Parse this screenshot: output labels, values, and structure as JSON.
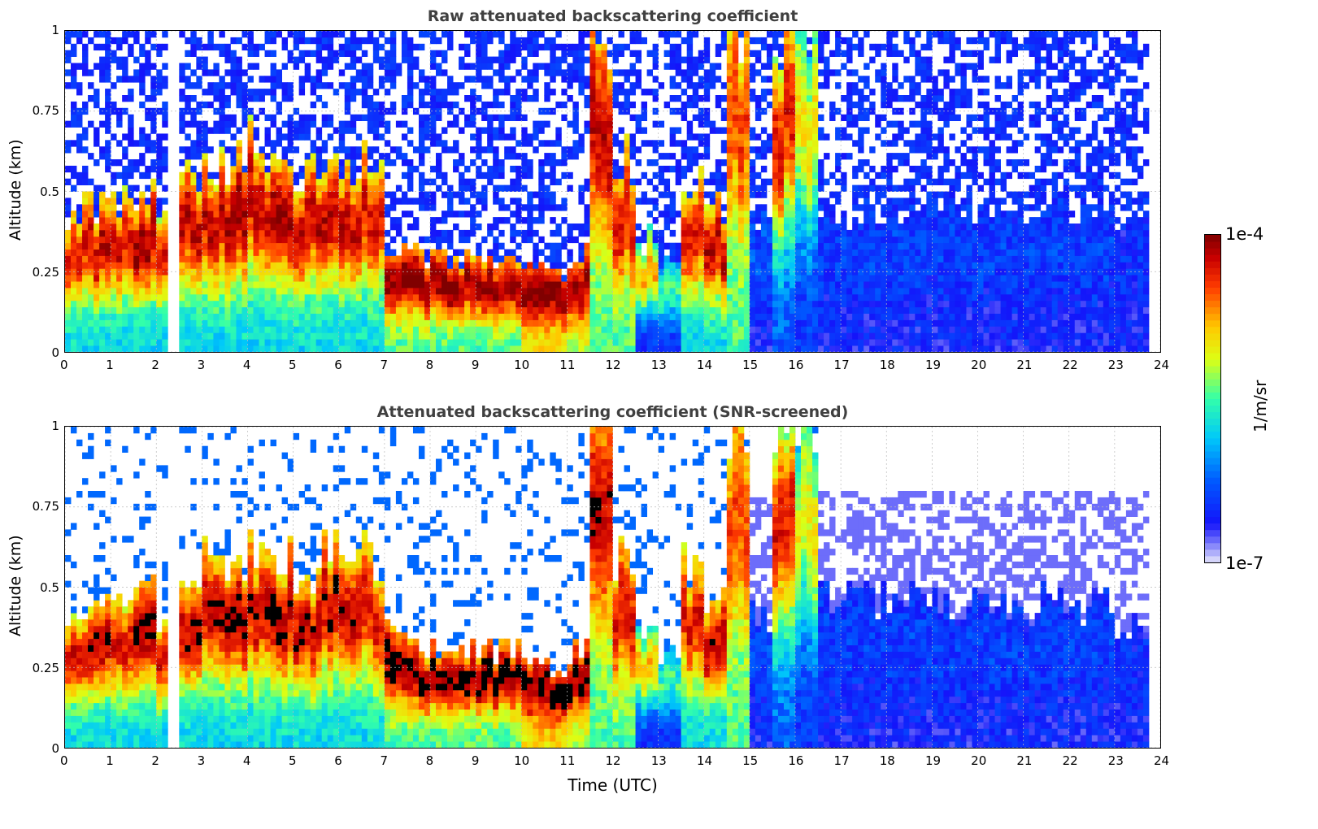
{
  "chart_data": [
    {
      "type": "heatmap",
      "title": "Raw attenuated backscattering coefficient",
      "xlabel": "",
      "ylabel": "Altitude (km)",
      "xlim": [
        0,
        24
      ],
      "ylim": [
        0,
        1
      ],
      "xticks": [
        0,
        1,
        2,
        3,
        4,
        5,
        6,
        7,
        8,
        9,
        10,
        11,
        12,
        13,
        14,
        15,
        16,
        17,
        18,
        19,
        20,
        21,
        22,
        23,
        24
      ],
      "yticks": [
        "0",
        "0.25",
        "0.5",
        "0.75",
        "1"
      ],
      "grid": true,
      "screened": false
    },
    {
      "type": "heatmap",
      "title": "Attenuated backscattering coefficient (SNR-screened)",
      "xlabel": "Time (UTC)",
      "ylabel": "Altitude (km)",
      "xlim": [
        0,
        24
      ],
      "ylim": [
        0,
        1
      ],
      "xticks": [
        0,
        1,
        2,
        3,
        4,
        5,
        6,
        7,
        8,
        9,
        10,
        11,
        12,
        13,
        14,
        15,
        16,
        17,
        18,
        19,
        20,
        21,
        22,
        23,
        24
      ],
      "yticks": [
        "0",
        "0.25",
        "0.5",
        "0.75",
        "1"
      ],
      "grid": true,
      "screened": true
    }
  ],
  "profiles": {
    "bin_hours": 0.5,
    "fields": [
      "layer_top_km",
      "peak_log10",
      "base_log10"
    ],
    "bins": [
      [
        0.45,
        -4.3,
        -5.8
      ],
      [
        0.45,
        -4.2,
        -5.8
      ],
      [
        0.45,
        -4.3,
        -5.8
      ],
      [
        0.5,
        -4.1,
        -5.8
      ],
      [
        0.4,
        -4.3,
        -5.9
      ],
      [
        0.55,
        -4.2,
        -5.8
      ],
      [
        0.6,
        -4.2,
        -5.8
      ],
      [
        0.6,
        -4.1,
        -5.8
      ],
      [
        0.65,
        -4.2,
        -5.8
      ],
      [
        0.6,
        -4.1,
        -5.8
      ],
      [
        0.55,
        -4.2,
        -5.8
      ],
      [
        0.6,
        -4.2,
        -5.8
      ],
      [
        0.55,
        -4.2,
        -5.8
      ],
      [
        0.6,
        -4.3,
        -5.8
      ],
      [
        0.35,
        -4.05,
        -5.5
      ],
      [
        0.3,
        -4.05,
        -5.5
      ],
      [
        0.3,
        -4.05,
        -5.5
      ],
      [
        0.3,
        -4.1,
        -5.5
      ],
      [
        0.3,
        -4.05,
        -5.5
      ],
      [
        0.3,
        -4.1,
        -5.5
      ],
      [
        0.25,
        -4.05,
        -5.0
      ],
      [
        0.25,
        -4.05,
        -5.0
      ],
      [
        0.3,
        -4.1,
        -5.2
      ],
      [
        1.0,
        -4.2,
        -5.5
      ],
      [
        0.6,
        -4.3,
        -5.5
      ],
      [
        0.35,
        -4.8,
        -6.5
      ],
      [
        0.3,
        -5.5,
        -6.5
      ],
      [
        0.55,
        -4.3,
        -5.8
      ],
      [
        0.45,
        -4.2,
        -5.8
      ],
      [
        1.0,
        -4.5,
        -5.5
      ],
      [
        0.4,
        -6.3,
        -6.6
      ],
      [
        1.0,
        -4.3,
        -6.3
      ],
      [
        1.0,
        -5.0,
        -6.5
      ],
      [
        0.45,
        -6.4,
        -6.6
      ],
      [
        0.45,
        -6.4,
        -6.6
      ],
      [
        0.45,
        -6.4,
        -6.6
      ],
      [
        0.45,
        -6.4,
        -6.6
      ],
      [
        0.45,
        -6.4,
        -6.6
      ],
      [
        0.45,
        -6.4,
        -6.6
      ],
      [
        0.45,
        -6.4,
        -6.6
      ],
      [
        0.45,
        -6.4,
        -6.6
      ],
      [
        0.45,
        -6.4,
        -6.6
      ],
      [
        0.45,
        -6.4,
        -6.6
      ],
      [
        0.45,
        -6.4,
        -6.6
      ],
      [
        0.45,
        -6.4,
        -6.6
      ],
      [
        0.45,
        -6.4,
        -6.6
      ],
      [
        0.4,
        -6.5,
        -6.6
      ],
      [
        0.4,
        -6.5,
        -6.6
      ]
    ],
    "gaps_hours": [
      [
        2.3,
        2.45
      ],
      [
        6.95,
        7.05
      ],
      [
        23.8,
        24
      ]
    ]
  },
  "colorbar": {
    "label": "1/m/sr",
    "max_label": "1e-4",
    "min_label": "1e-7",
    "vmin_log10": -7,
    "vmax_log10": -4
  }
}
